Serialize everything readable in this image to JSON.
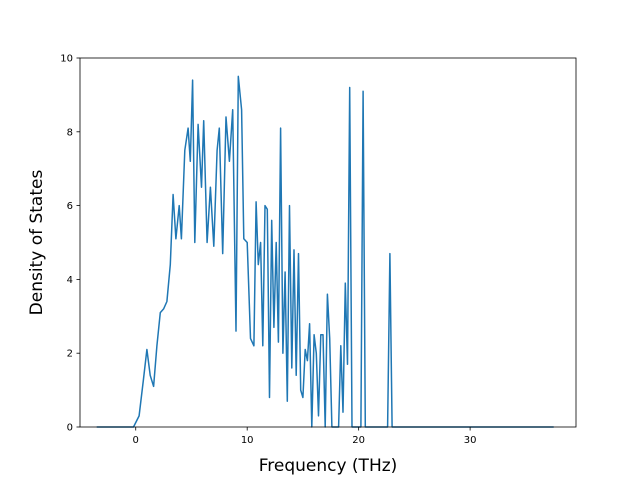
{
  "chart_data": {
    "type": "line",
    "title": "",
    "xlabel": "Frequency (THz)",
    "ylabel": "Density of States",
    "xlim": [
      -5,
      39.5
    ],
    "ylim": [
      0,
      10
    ],
    "xticks": [
      0,
      10,
      20,
      30
    ],
    "xtick_labels": [
      "0",
      "10",
      "20",
      "30"
    ],
    "yticks": [
      0,
      2,
      4,
      6,
      8,
      10
    ],
    "ytick_labels": [
      "0",
      "2",
      "4",
      "6",
      "8",
      "10"
    ],
    "grid": false,
    "legend": "none",
    "colors": {
      "line": "#1f77b4",
      "axes": "#000000",
      "background": "#ffffff"
    },
    "series": [
      {
        "x": [
          -3.5,
          -1.0,
          -0.2,
          0.3,
          0.7,
          1.0,
          1.3,
          1.6,
          1.9,
          2.2,
          2.5,
          2.8,
          3.1,
          3.35,
          3.6,
          3.9,
          4.1,
          4.4,
          4.7,
          4.9,
          5.1,
          5.3,
          5.6,
          5.9,
          6.1,
          6.4,
          6.7,
          7.0,
          7.3,
          7.5,
          7.8,
          8.1,
          8.4,
          8.7,
          9.0,
          9.2,
          9.5,
          9.7,
          10.0,
          10.3,
          10.6,
          10.8,
          11.0,
          11.2,
          11.4,
          11.6,
          11.8,
          12.0,
          12.2,
          12.4,
          12.6,
          12.8,
          13.0,
          13.2,
          13.4,
          13.6,
          13.8,
          14.0,
          14.2,
          14.4,
          14.6,
          14.8,
          15.0,
          15.2,
          15.4,
          15.6,
          15.8,
          16.0,
          16.2,
          16.4,
          16.6,
          16.8,
          17.0,
          17.2,
          17.4,
          17.6,
          17.8,
          18.0,
          18.2,
          18.4,
          18.6,
          18.8,
          19.0,
          19.2,
          19.4,
          19.6,
          19.8,
          20.0,
          20.2,
          20.4,
          20.6,
          20.8,
          21.0,
          21.2,
          21.4,
          21.6,
          21.8,
          22.0,
          22.3,
          22.6,
          22.8,
          23.0,
          23.2,
          23.5,
          24.0,
          24.5,
          25.0,
          25.3,
          25.6,
          25.8,
          26.0,
          27.0,
          30.0,
          35.0,
          37.5
        ],
        "y": [
          0,
          0,
          0,
          0.3,
          1.3,
          2.1,
          1.4,
          1.1,
          2.2,
          3.1,
          3.2,
          3.4,
          4.4,
          6.3,
          5.1,
          6.0,
          5.1,
          7.5,
          8.1,
          7.2,
          9.4,
          5.0,
          8.2,
          6.5,
          8.3,
          5.0,
          6.5,
          4.9,
          7.5,
          8.1,
          4.7,
          8.4,
          7.2,
          8.6,
          2.6,
          9.5,
          8.6,
          5.1,
          5.0,
          2.4,
          2.2,
          6.1,
          4.4,
          5.0,
          2.2,
          6.0,
          5.9,
          0.8,
          5.6,
          2.7,
          5.0,
          2.3,
          8.1,
          2.0,
          4.2,
          0.7,
          6.0,
          1.6,
          4.8,
          1.4,
          4.7,
          1.0,
          0.8,
          2.1,
          1.8,
          2.8,
          0,
          2.5,
          2.0,
          0.3,
          2.5,
          2.5,
          0,
          3.6,
          2.4,
          0,
          0,
          0,
          0,
          2.2,
          0.4,
          3.9,
          1.7,
          9.2,
          0,
          0,
          0,
          0,
          0,
          9.1,
          0,
          0,
          0,
          0,
          0,
          0,
          0,
          0,
          0,
          0,
          4.7,
          0,
          0,
          0,
          0,
          0,
          0,
          0,
          0,
          0,
          0,
          0,
          0,
          0,
          0
        ]
      }
    ]
  }
}
